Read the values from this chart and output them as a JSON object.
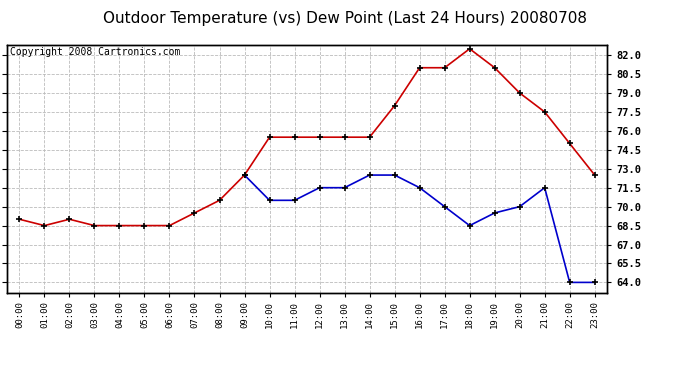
{
  "title": "Outdoor Temperature (vs) Dew Point (Last 24 Hours) 20080708",
  "copyright_text": "Copyright 2008 Cartronics.com",
  "hours": [
    "00:00",
    "01:00",
    "02:00",
    "03:00",
    "04:00",
    "05:00",
    "06:00",
    "07:00",
    "08:00",
    "09:00",
    "10:00",
    "11:00",
    "12:00",
    "13:00",
    "14:00",
    "15:00",
    "16:00",
    "17:00",
    "18:00",
    "19:00",
    "20:00",
    "21:00",
    "22:00",
    "23:00"
  ],
  "temp": [
    69.0,
    68.5,
    69.0,
    68.5,
    68.5,
    68.5,
    68.5,
    69.5,
    70.5,
    72.5,
    75.5,
    75.5,
    75.5,
    75.5,
    75.5,
    78.0,
    81.0,
    81.0,
    82.5,
    81.0,
    79.0,
    77.5,
    75.0,
    72.5
  ],
  "dew": [
    null,
    null,
    null,
    null,
    null,
    null,
    null,
    null,
    null,
    72.5,
    70.5,
    70.5,
    71.5,
    71.5,
    72.5,
    72.5,
    71.5,
    70.0,
    68.5,
    69.5,
    70.0,
    71.5,
    64.0,
    64.0
  ],
  "temp_color": "#cc0000",
  "dew_color": "#0000cc",
  "bg_color": "#ffffff",
  "plot_bg_color": "#ffffff",
  "grid_color": "#bbbbbb",
  "yticks": [
    64.0,
    65.5,
    67.0,
    68.5,
    70.0,
    71.5,
    73.0,
    74.5,
    76.0,
    77.5,
    79.0,
    80.5,
    82.0
  ],
  "ymin": 63.2,
  "ymax": 82.8,
  "title_fontsize": 11,
  "copyright_fontsize": 7,
  "marker": "+",
  "markersize": 5,
  "markeredgewidth": 1.2,
  "linewidth": 1.2
}
